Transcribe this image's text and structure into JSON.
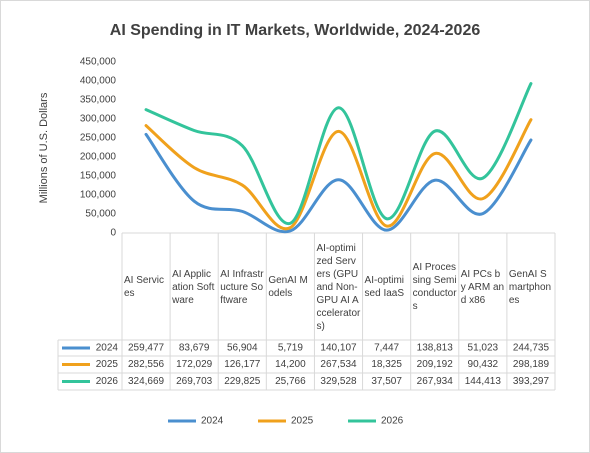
{
  "chart_data": {
    "type": "line",
    "title": "AI Spending in IT Markets, Worldwide, 2024-2026",
    "y_label": "Millions of U.S. Dollars",
    "categories": [
      "AI Services",
      "AI Application Software",
      "AI Infrastructure Software",
      "GenAI Models",
      "AI-optimized Servers (GPU and Non-GPU AI Accelerators)",
      "AI-optimised IaaS",
      "AI Processing Semiconductors",
      "AI PCs by ARM and x86",
      "GenAI Smartphones"
    ],
    "series": [
      {
        "name": "2024",
        "color": "#4a8fcf",
        "values": [
          259477,
          83679,
          56904,
          5719,
          140107,
          7447,
          138813,
          51023,
          244735
        ],
        "value_labels": [
          "259,477",
          "83,679",
          "56,904",
          "5,719",
          "140,107",
          "7,447",
          "138,813",
          "51,023",
          "244,735"
        ]
      },
      {
        "name": "2025",
        "color": "#f0a11c",
        "values": [
          282556,
          172029,
          126177,
          14200,
          267534,
          18325,
          209192,
          90432,
          298189
        ],
        "value_labels": [
          "282,556",
          "172,029",
          "126,177",
          "14,200",
          "267,534",
          "18,325",
          "209,192",
          "90,432",
          "298,189"
        ]
      },
      {
        "name": "2026",
        "color": "#33c49b",
        "values": [
          324669,
          269703,
          229825,
          25766,
          329528,
          37507,
          267934,
          144413,
          393297
        ],
        "value_labels": [
          "324,669",
          "269,703",
          "229,825",
          "25,766",
          "329,528",
          "37,507",
          "267,934",
          "144,413",
          "393,297"
        ]
      }
    ],
    "ylim": [
      0,
      450000
    ],
    "yticks": [
      0,
      {
        "value": 50000,
        "label": "50,000"
      },
      {
        "value": 100000,
        "label": "100,000"
      },
      {
        "value": 150000,
        "label": "150,000"
      },
      {
        "value": 200000,
        "label": "200,000"
      },
      {
        "value": 250000,
        "label": "250,000"
      },
      {
        "value": 300000,
        "label": "300,000"
      },
      {
        "value": 350000,
        "label": "350,000"
      },
      {
        "value": 400000,
        "label": "400,000"
      },
      {
        "value": 450000,
        "label": "450,000"
      }
    ],
    "smooth": true,
    "legend": "bottom"
  }
}
